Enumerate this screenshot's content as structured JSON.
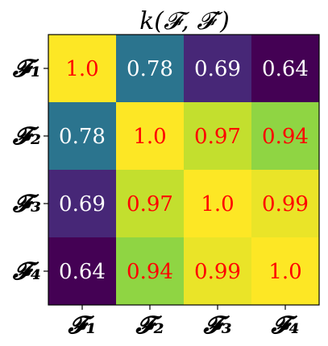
{
  "chart_data": {
    "type": "heatmap",
    "title": "k(𝓕, 𝓕′)",
    "x_labels": [
      "𝓕₁",
      "𝓕₂",
      "𝓕₃",
      "𝓕₄"
    ],
    "y_labels": [
      "𝓕₁",
      "𝓕₂",
      "𝓕₃",
      "𝓕₄"
    ],
    "values": [
      [
        1.0,
        0.78,
        0.69,
        0.64
      ],
      [
        0.78,
        1.0,
        0.97,
        0.94
      ],
      [
        0.69,
        0.97,
        1.0,
        0.99
      ],
      [
        0.64,
        0.94,
        0.99,
        1.0
      ]
    ],
    "cell_labels": [
      [
        "1.0",
        "0.78",
        "0.69",
        "0.64"
      ],
      [
        "0.78",
        "1.0",
        "0.97",
        "0.94"
      ],
      [
        "0.69",
        "0.97",
        "1.0",
        "0.99"
      ],
      [
        "0.64",
        "0.94",
        "0.99",
        "1.0"
      ]
    ],
    "colormap": "viridis",
    "value_range": [
      0.64,
      1.0
    ],
    "label_colors": {
      "low": "#ffffff",
      "high": "#ff0000"
    },
    "label_color_threshold": 0.9
  }
}
